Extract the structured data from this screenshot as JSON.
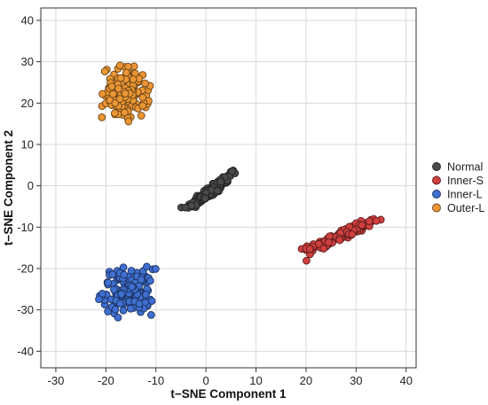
{
  "chart_data": {
    "type": "scatter",
    "title": "",
    "xlabel": "t−SNE Component 1",
    "ylabel": "t−SNE Component 2",
    "xlim": [
      -33,
      42
    ],
    "ylim": [
      -44,
      43
    ],
    "xticks": [
      -30,
      -20,
      -10,
      0,
      10,
      20,
      30,
      40
    ],
    "yticks": [
      -40,
      -30,
      -20,
      -10,
      0,
      10,
      20,
      30,
      40
    ],
    "xtick_labels": [
      "-30",
      "-20",
      "-10",
      "0",
      "10",
      "20",
      "30",
      "40"
    ],
    "ytick_labels": [
      "-40",
      "-30",
      "-20",
      "-10",
      "0",
      "10",
      "20",
      "30",
      "40"
    ],
    "grid": true,
    "legend_position": "right",
    "series": [
      {
        "name": "Normal",
        "color": "#4a4a4a",
        "cluster": {
          "center": [
            1.2,
            -1.0
          ],
          "x_range": [
            -5,
            7
          ],
          "y_range": [
            -8,
            6
          ],
          "orientation": "diagonal-up",
          "count": 150
        }
      },
      {
        "name": "Inner-S",
        "color": "#d0403f",
        "cluster": {
          "center": [
            27.0,
            -12.0
          ],
          "x_range": [
            19,
            35
          ],
          "y_range": [
            -19,
            -8
          ],
          "orientation": "diagonal-up",
          "count": 160
        }
      },
      {
        "name": "Inner-L",
        "color": "#3f6fd1",
        "cluster": {
          "center": [
            -15.5,
            -25.5
          ],
          "x_range": [
            -22,
            -10
          ],
          "y_range": [
            -32,
            -19
          ],
          "orientation": "round",
          "count": 150
        }
      },
      {
        "name": "Outer-L",
        "color": "#eb9633",
        "cluster": {
          "center": [
            -16.0,
            22.5
          ],
          "x_range": [
            -21,
            -10
          ],
          "y_range": [
            15,
            30
          ],
          "orientation": "vertical",
          "count": 150
        }
      }
    ]
  }
}
